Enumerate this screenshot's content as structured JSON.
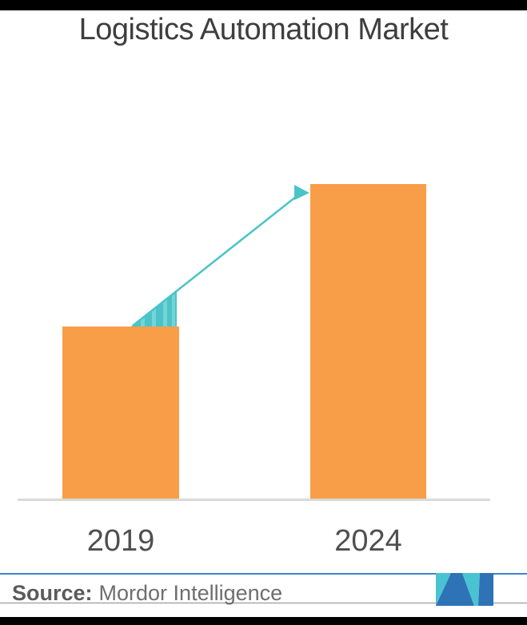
{
  "page": {
    "background": "#ffffff",
    "letterbox_color": "#000000"
  },
  "header": {
    "title": "Logistics Automation Market",
    "title_color": "#3e3e3e"
  },
  "chart_data": {
    "type": "bar",
    "title": "Logistics Automation Market",
    "categories": [
      "2019",
      "2024"
    ],
    "values": [
      35,
      64
    ],
    "value_note": "No numeric axis or data labels shown; values are relative bar heights (2024 ≈ 1.83× 2019)",
    "bar_color": "#f99e48",
    "label_color": "#4f4f4f",
    "axis_line_color": "#d9d9d9",
    "gridlines": false,
    "legend": false,
    "annotations": [
      {
        "type": "growth-arrow",
        "from": "2019",
        "to": "2024",
        "color": "#4ac4c9",
        "description": "teal arrow with flared wedge tail rising from top of 2019 bar to top of 2024 bar"
      }
    ]
  },
  "footer": {
    "source_label": "Source:",
    "source_value": "Mordor Intelligence",
    "rule_top_color": "#3a88c8",
    "rule_bottom_color": "#8a8a8a",
    "logo": {
      "name": "mordor-intelligence-logo",
      "blue": "#2e73b5",
      "teal": "#49c3d2"
    }
  }
}
